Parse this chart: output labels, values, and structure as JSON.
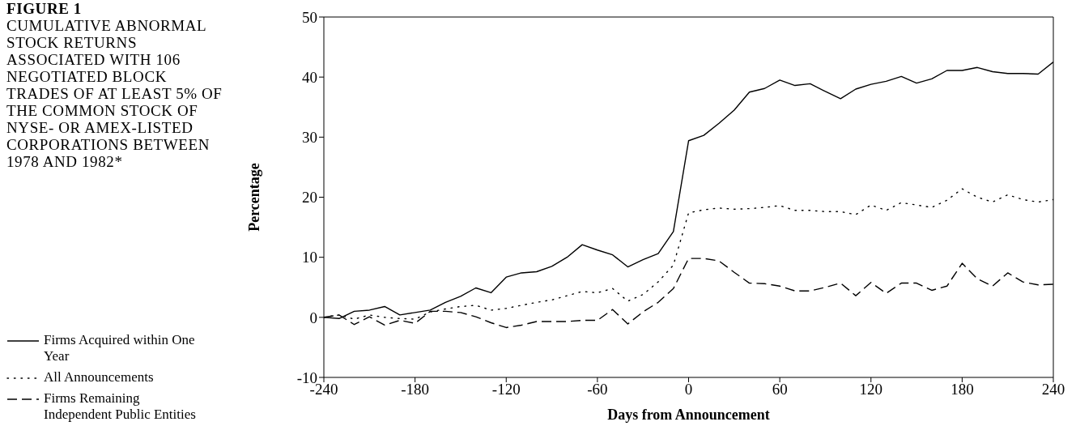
{
  "chart_data": {
    "type": "line",
    "title": "FIGURE 1",
    "subtitle": "CUMULATIVE ABNORMAL STOCK RETURNS ASSOCIATED WITH 106 NEGOTIATED BLOCK TRADES OF AT LEAST 5% OF THE COMMON STOCK OF NYSE- OR AMEX-LISTED CORPORATIONS BETWEEN 1978 AND 1982*",
    "xlabel": "Days from Announcement",
    "ylabel": "Percentage",
    "x": [
      -240,
      -230,
      -220,
      -210,
      -200,
      -190,
      -180,
      -170,
      -160,
      -150,
      -140,
      -130,
      -120,
      -110,
      -100,
      -90,
      -80,
      -70,
      -60,
      -50,
      -40,
      -30,
      -20,
      -10,
      0,
      10,
      20,
      30,
      40,
      50,
      60,
      70,
      80,
      90,
      100,
      110,
      120,
      130,
      140,
      150,
      160,
      170,
      180,
      190,
      200,
      210,
      220,
      230,
      240
    ],
    "series": [
      {
        "name": "Firms Acquired within One Year",
        "color": "#000000",
        "line_style": "solid",
        "values": [
          0,
          -0.2,
          1.0,
          1.2,
          1.8,
          0.4,
          0.8,
          1.2,
          2.5,
          3.5,
          4.9,
          4.1,
          6.7,
          7.4,
          7.6,
          8.5,
          10.0,
          12.1,
          11.2,
          10.4,
          8.4,
          9.6,
          10.6,
          14.3,
          29.4,
          30.3,
          32.3,
          34.5,
          37.5,
          38.1,
          39.5,
          38.6,
          38.9,
          37.6,
          36.4,
          38.0,
          38.8,
          39.3,
          40.1,
          39.0,
          39.7,
          41.1,
          41.1,
          41.6,
          40.9,
          40.6,
          40.6,
          40.5,
          42.5
        ]
      },
      {
        "name": "All Announcements",
        "color": "#000000",
        "line_style": "dotted",
        "values": [
          0,
          0.4,
          -0.3,
          0.4,
          0,
          -0.2,
          -0.3,
          0.9,
          1.4,
          1.8,
          2.0,
          1.2,
          1.5,
          2.0,
          2.5,
          2.9,
          3.6,
          4.3,
          4.1,
          4.8,
          2.7,
          3.8,
          5.9,
          8.7,
          17.4,
          17.9,
          18.2,
          18.0,
          18.1,
          18.3,
          18.6,
          17.8,
          17.8,
          17.6,
          17.6,
          17.1,
          18.7,
          17.8,
          19.1,
          18.7,
          18.3,
          19.5,
          21.4,
          20.0,
          19.2,
          20.4,
          19.6,
          19.2,
          19.6
        ]
      },
      {
        "name": "Firms Remaining Independent Public Entities",
        "color": "#000000",
        "line_style": "dashed",
        "values": [
          0,
          0.4,
          -1.2,
          0.1,
          -1.3,
          -0.5,
          -1.0,
          1.0,
          1.0,
          0.8,
          0.1,
          -0.9,
          -1.7,
          -1.3,
          -0.7,
          -0.7,
          -0.7,
          -0.5,
          -0.5,
          1.3,
          -1.1,
          0.9,
          2.5,
          4.8,
          9.8,
          9.8,
          9.4,
          7.5,
          5.7,
          5.6,
          5.2,
          4.4,
          4.4,
          5.0,
          5.7,
          3.6,
          5.8,
          4.0,
          5.7,
          5.7,
          4.5,
          5.2,
          9.0,
          6.4,
          5.2,
          7.4,
          5.9,
          5.4,
          5.5
        ]
      }
    ],
    "xlim": [
      -240,
      240
    ],
    "xticks": [
      -240,
      -180,
      -120,
      -60,
      0,
      60,
      120,
      180,
      240
    ],
    "ylim": [
      -10,
      50
    ],
    "yticks": [
      -10,
      0,
      10,
      20,
      30,
      40,
      50
    ],
    "grid": false,
    "legend": "bottom left",
    "marker": "none"
  }
}
